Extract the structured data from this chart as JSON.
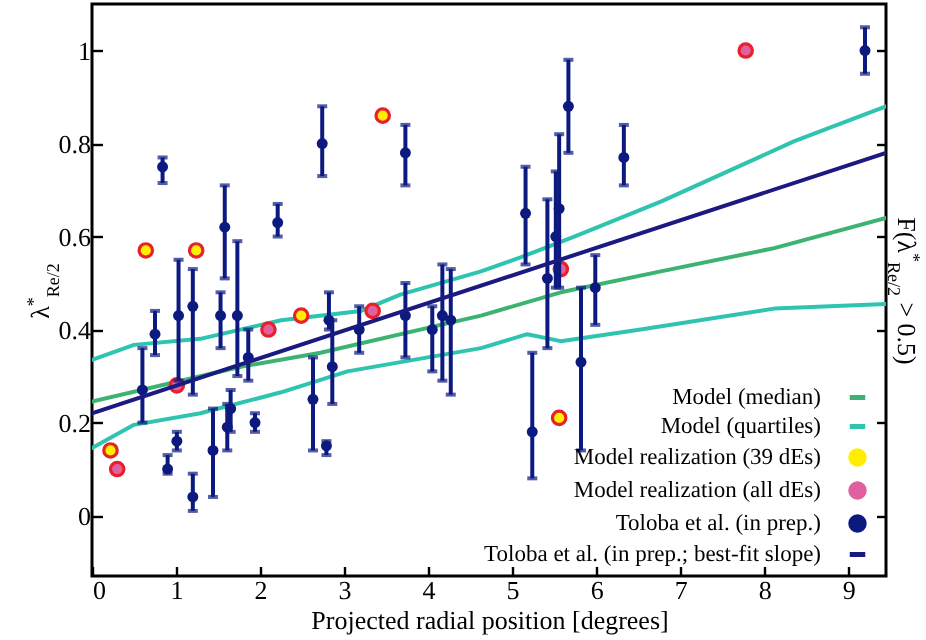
{
  "chart_data": {
    "type": "scatter",
    "xlabel": "Projected radial position [degrees]",
    "ylabel": "λ$^{*}$$_{Re/2}$",
    "y2label": "F(λ$^{*}$$_{Re/2}$ > 0.5)",
    "xlim": [
      0,
      9.45
    ],
    "xticks": [
      0,
      1,
      2,
      3,
      4,
      5,
      6,
      7,
      8,
      9
    ],
    "ylim": [
      -0.13,
      1.1
    ],
    "yticks": [
      0,
      0.2,
      0.4,
      0.6,
      0.8,
      1
    ],
    "legend": "bottom right",
    "line_style": "solid",
    "grid": false,
    "series": [
      {
        "name": "Model (median)",
        "type": "line",
        "color": "#3cb371",
        "x": [
          0,
          1.77,
          2.72,
          4.15,
          4.63,
          5.58,
          6.77,
          8.12,
          9.45
        ],
        "values": [
          0.245,
          0.32,
          0.35,
          0.41,
          0.43,
          0.48,
          0.525,
          0.575,
          0.64
        ]
      },
      {
        "name": "Model (quartiles)",
        "type": "line",
        "color": "#2ec4b0",
        "x": [
          0,
          0.5,
          1.29,
          2.25,
          3.2,
          3.67,
          4.63,
          5.1,
          5.74,
          6.77,
          8.36,
          9.45
        ],
        "values": [
          0.335,
          0.367,
          0.38,
          0.42,
          0.44,
          0.475,
          0.525,
          0.555,
          0.6,
          0.675,
          0.805,
          0.88
        ]
      },
      {
        "type": "line",
        "color": "#2ec4b0",
        "x": [
          0,
          0.5,
          1.29,
          2.25,
          3.04,
          4.63,
          5.18,
          5.58,
          6.53,
          8.12,
          9.45
        ],
        "values": [
          0.145,
          0.195,
          0.22,
          0.265,
          0.31,
          0.36,
          0.39,
          0.375,
          0.4,
          0.445,
          0.455
        ]
      },
      {
        "name": "Model realization (39 dEs)",
        "marker": "circle",
        "color": "#ffee00",
        "x": [
          0.22,
          0.64,
          1.24,
          2.49,
          3.46,
          5.56
        ],
        "values": [
          0.14,
          0.57,
          0.57,
          0.43,
          0.86,
          0.21
        ]
      },
      {
        "name": "Model realization (all dEs)",
        "marker": "circle",
        "color": "#e060a0",
        "x": [
          0.3,
          1.01,
          2.1,
          3.34,
          5.58,
          7.78
        ],
        "values": [
          0.1,
          0.28,
          0.4,
          0.44,
          0.53,
          1.0
        ]
      },
      {
        "name": "Toloba et al. (in prep.)",
        "marker": "circle",
        "color": "#0c1a80",
        "x": [
          0.84,
          0.75,
          1.03,
          1.2,
          1.58,
          1.53,
          1.73,
          1.86,
          2.21,
          2.74,
          2.82,
          3.18,
          3.73,
          3.73,
          4.05,
          4.17,
          4.27,
          0.6,
          0.9,
          1.01,
          1.2,
          1.44,
          1.61,
          1.65,
          1.94,
          2.63,
          2.79,
          2.86,
          9.2,
          5.67,
          6.33,
          5.16,
          5.56,
          5.52,
          5.42,
          5.99,
          5.82,
          5.24
        ],
        "values": [
          0.75,
          0.39,
          0.43,
          0.45,
          0.62,
          0.43,
          0.43,
          0.34,
          0.63,
          0.8,
          0.42,
          0.4,
          0.78,
          0.43,
          0.4,
          0.43,
          0.42,
          0.27,
          0.1,
          0.16,
          0.04,
          0.14,
          0.19,
          0.23,
          0.2,
          0.25,
          0.15,
          0.32,
          1.0,
          0.88,
          0.77,
          0.65,
          0.66,
          0.6,
          0.51,
          0.49,
          0.33,
          0.18
        ],
        "errors": [
          [
            0.715,
            0.77
          ],
          [
            0.345,
            0.44
          ],
          [
            0.29,
            0.55
          ],
          [
            0.26,
            0.53
          ],
          [
            0.51,
            0.71
          ],
          [
            0.36,
            0.48
          ],
          [
            0.3,
            0.59
          ],
          [
            0.29,
            0.4
          ],
          [
            0.6,
            0.67
          ],
          [
            0.73,
            0.88
          ],
          [
            0.4,
            0.48
          ],
          [
            0.35,
            0.45
          ],
          [
            0.71,
            0.84
          ],
          [
            0.34,
            0.5
          ],
          [
            0.31,
            0.45
          ],
          [
            0.29,
            0.54
          ],
          [
            0.26,
            0.53
          ],
          [
            0.2,
            0.36
          ],
          [
            0.09,
            0.13
          ],
          [
            0.14,
            0.18
          ],
          [
            0.01,
            0.09
          ],
          [
            0.04,
            0.23
          ],
          [
            0.14,
            0.24
          ],
          [
            0.18,
            0.27
          ],
          [
            0.18,
            0.22
          ],
          [
            0.14,
            0.34
          ],
          [
            0.13,
            0.16
          ],
          [
            0.24,
            0.42
          ],
          [
            0.95,
            1.05
          ],
          [
            0.78,
            0.98
          ],
          [
            0.71,
            0.84
          ],
          [
            0.54,
            0.75
          ],
          [
            0.49,
            0.82
          ],
          [
            0.49,
            0.74
          ],
          [
            0.36,
            0.68
          ],
          [
            0.41,
            0.56
          ],
          [
            0.14,
            0.49
          ],
          [
            0.08,
            0.35
          ]
        ]
      },
      {
        "name": "Toloba et al. (in prep.; best-fit slope)",
        "type": "line",
        "color": "#1a1a80",
        "x": [
          0,
          9.45
        ],
        "values": [
          0.22,
          0.78
        ]
      }
    ]
  }
}
